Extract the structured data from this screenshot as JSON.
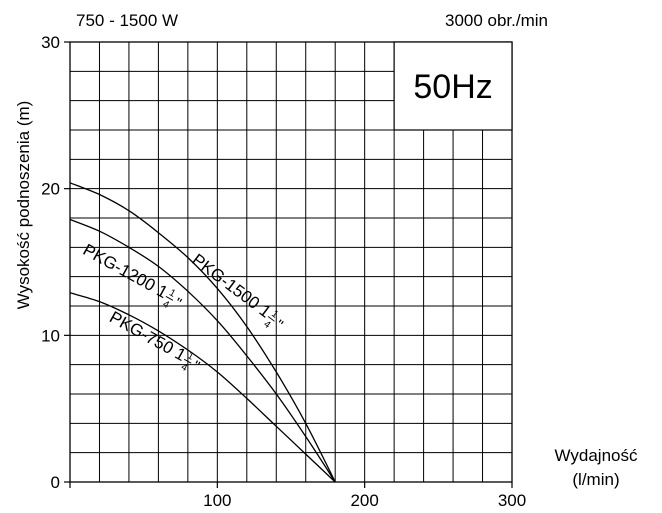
{
  "chart_data": {
    "type": "line",
    "header_left": "750 - 1500 W",
    "header_right": "3000 obr./min",
    "frequency_label": "50Hz",
    "ylabel": "Wysokość podnoszenia (m)",
    "xlabel_line1": "Wydajność",
    "xlabel_line2": "(l/min)",
    "xlim": [
      0,
      300
    ],
    "ylim": [
      0,
      30
    ],
    "x_minor_step": 20,
    "y_minor_step": 2,
    "x_ticks": [
      0,
      100,
      200,
      300
    ],
    "x_tick_labels": [
      "100",
      "200",
      "300"
    ],
    "y_ticks": [
      0,
      10,
      20,
      30
    ],
    "y_tick_labels": [
      "0",
      "10",
      "20",
      "30"
    ],
    "grid": true,
    "series": [
      {
        "name": "PKG-1500 1¼\"",
        "model": "PKG-1500 1",
        "frac_num": "1",
        "frac_den": "4",
        "x": [
          0,
          20,
          40,
          60,
          80,
          100,
          120,
          140,
          160,
          180
        ],
        "y": [
          20.4,
          19.6,
          18.5,
          17.0,
          15.3,
          13.2,
          10.6,
          7.5,
          4.0,
          0
        ]
      },
      {
        "name": "PKG-1200 1¼\"",
        "model": "PKG-1200 1",
        "frac_num": "1",
        "frac_den": "4",
        "x": [
          0,
          20,
          40,
          60,
          80,
          100,
          120,
          140,
          160,
          180
        ],
        "y": [
          17.9,
          17.1,
          16.0,
          14.7,
          13.0,
          11.0,
          8.6,
          6.0,
          3.1,
          0
        ]
      },
      {
        "name": "PKG-750 1¼\"",
        "model": "PKG-750 1",
        "frac_num": "1",
        "frac_den": "4",
        "x": [
          0,
          20,
          40,
          60,
          80,
          100,
          120,
          140,
          160,
          180
        ],
        "y": [
          12.9,
          12.3,
          11.4,
          10.3,
          9.0,
          7.5,
          5.7,
          3.8,
          1.9,
          0
        ]
      }
    ]
  }
}
